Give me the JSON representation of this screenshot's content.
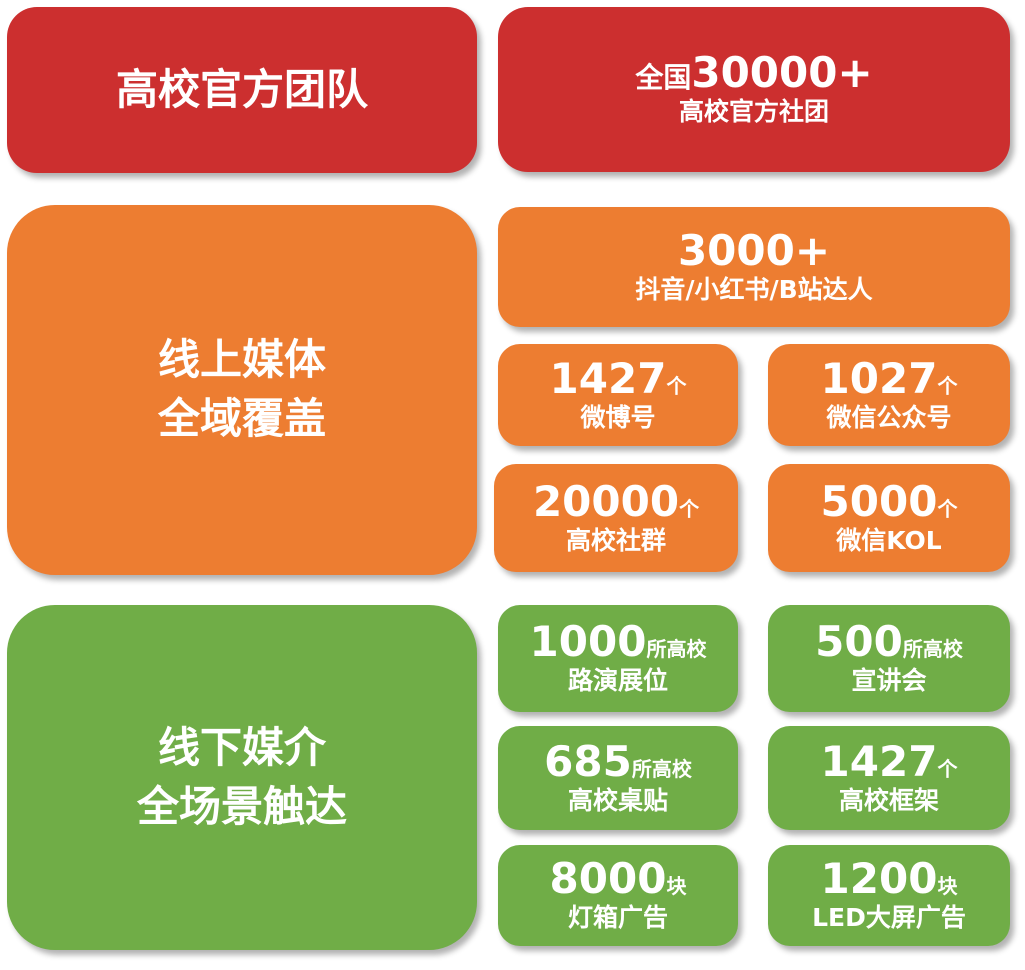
{
  "colors": {
    "red": "#CC2F2F",
    "orange": "#ED7D31",
    "green": "#70AD47"
  },
  "team": {
    "title": "高校官方团队",
    "prefix": "全国",
    "number": "30000+",
    "label": "高校官方社团"
  },
  "online": {
    "title_line1": "线上媒体",
    "title_line2": "全域覆盖",
    "items": [
      {
        "number": "3000+",
        "unit": "",
        "label": "抖音/小红书/B站达人"
      },
      {
        "number": "1427",
        "unit": "个",
        "label": "微博号"
      },
      {
        "number": "1027",
        "unit": "个",
        "label": "微信公众号"
      },
      {
        "number": "20000",
        "unit": "个",
        "label": "高校社群"
      },
      {
        "number": "5000",
        "unit": "个",
        "label": "微信KOL"
      }
    ]
  },
  "offline": {
    "title_line1": "线下媒介",
    "title_line2": "全场景触达",
    "items": [
      {
        "number": "1000",
        "unit": "所高校",
        "label": "路演展位"
      },
      {
        "number": "500",
        "unit": "所高校",
        "label": "宣讲会"
      },
      {
        "number": "685",
        "unit": "所高校",
        "label": "高校桌贴"
      },
      {
        "number": "1427",
        "unit": "个",
        "label": "高校框架"
      },
      {
        "number": "8000",
        "unit": "块",
        "label": "灯箱广告"
      },
      {
        "number": "1200",
        "unit": "块",
        "label": "LED大屏广告"
      }
    ]
  }
}
